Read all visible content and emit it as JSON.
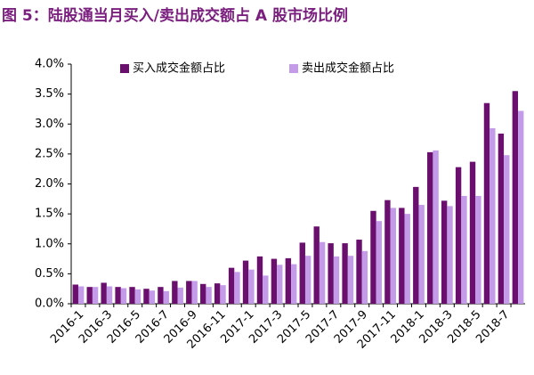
{
  "chart_data": {
    "type": "bar",
    "title": "图 5：陆股通当月买入/卖出成交额占 A 股市场比例",
    "categories": [
      "2016-1",
      null,
      "2016-3",
      null,
      "2016-5",
      null,
      "2016-7",
      null,
      "2016-9",
      null,
      "2016-11",
      null,
      "2017-1",
      null,
      "2017-3",
      null,
      "2017-5",
      null,
      "2017-7",
      null,
      "2017-9",
      null,
      "2017-11",
      null,
      "2018-1",
      null,
      "2018-3",
      null,
      "2018-5",
      null,
      "2018-7",
      null
    ],
    "series": [
      {
        "name": "买入成交金额占比",
        "color": "#6a0f6e",
        "values": [
          0.32,
          0.28,
          0.35,
          0.28,
          0.28,
          0.25,
          0.28,
          0.38,
          0.38,
          0.33,
          0.34,
          0.6,
          0.72,
          0.79,
          0.75,
          0.76,
          1.02,
          1.29,
          1.01,
          1.01,
          1.07,
          1.55,
          1.73,
          1.6,
          1.95,
          2.53,
          1.72,
          2.28,
          2.37,
          3.35,
          2.84,
          3.55
        ]
      },
      {
        "name": "卖出成交金额占比",
        "color": "#c49be8",
        "values": [
          0.29,
          0.28,
          0.29,
          0.26,
          0.24,
          0.22,
          0.21,
          0.27,
          0.38,
          0.28,
          0.31,
          0.53,
          0.57,
          0.47,
          0.65,
          0.66,
          0.8,
          1.03,
          0.79,
          0.8,
          0.88,
          1.38,
          1.6,
          1.5,
          1.65,
          2.56,
          1.63,
          1.8,
          1.8,
          2.93,
          2.48,
          3.22
        ]
      }
    ],
    "ylim": [
      0,
      4
    ],
    "yticks": [
      {
        "value": 0,
        "label": "0.0%"
      },
      {
        "value": 0.5,
        "label": "0.5%"
      },
      {
        "value": 1,
        "label": "1.0%"
      },
      {
        "value": 1.5,
        "label": "1.5%"
      },
      {
        "value": 2,
        "label": "2.0%"
      },
      {
        "value": 2.5,
        "label": "2.5%"
      },
      {
        "value": 3,
        "label": "3.0%"
      },
      {
        "value": 3.5,
        "label": "3.5%"
      },
      {
        "value": 4,
        "label": "4.0%"
      }
    ],
    "grid": false,
    "legend": "top"
  }
}
